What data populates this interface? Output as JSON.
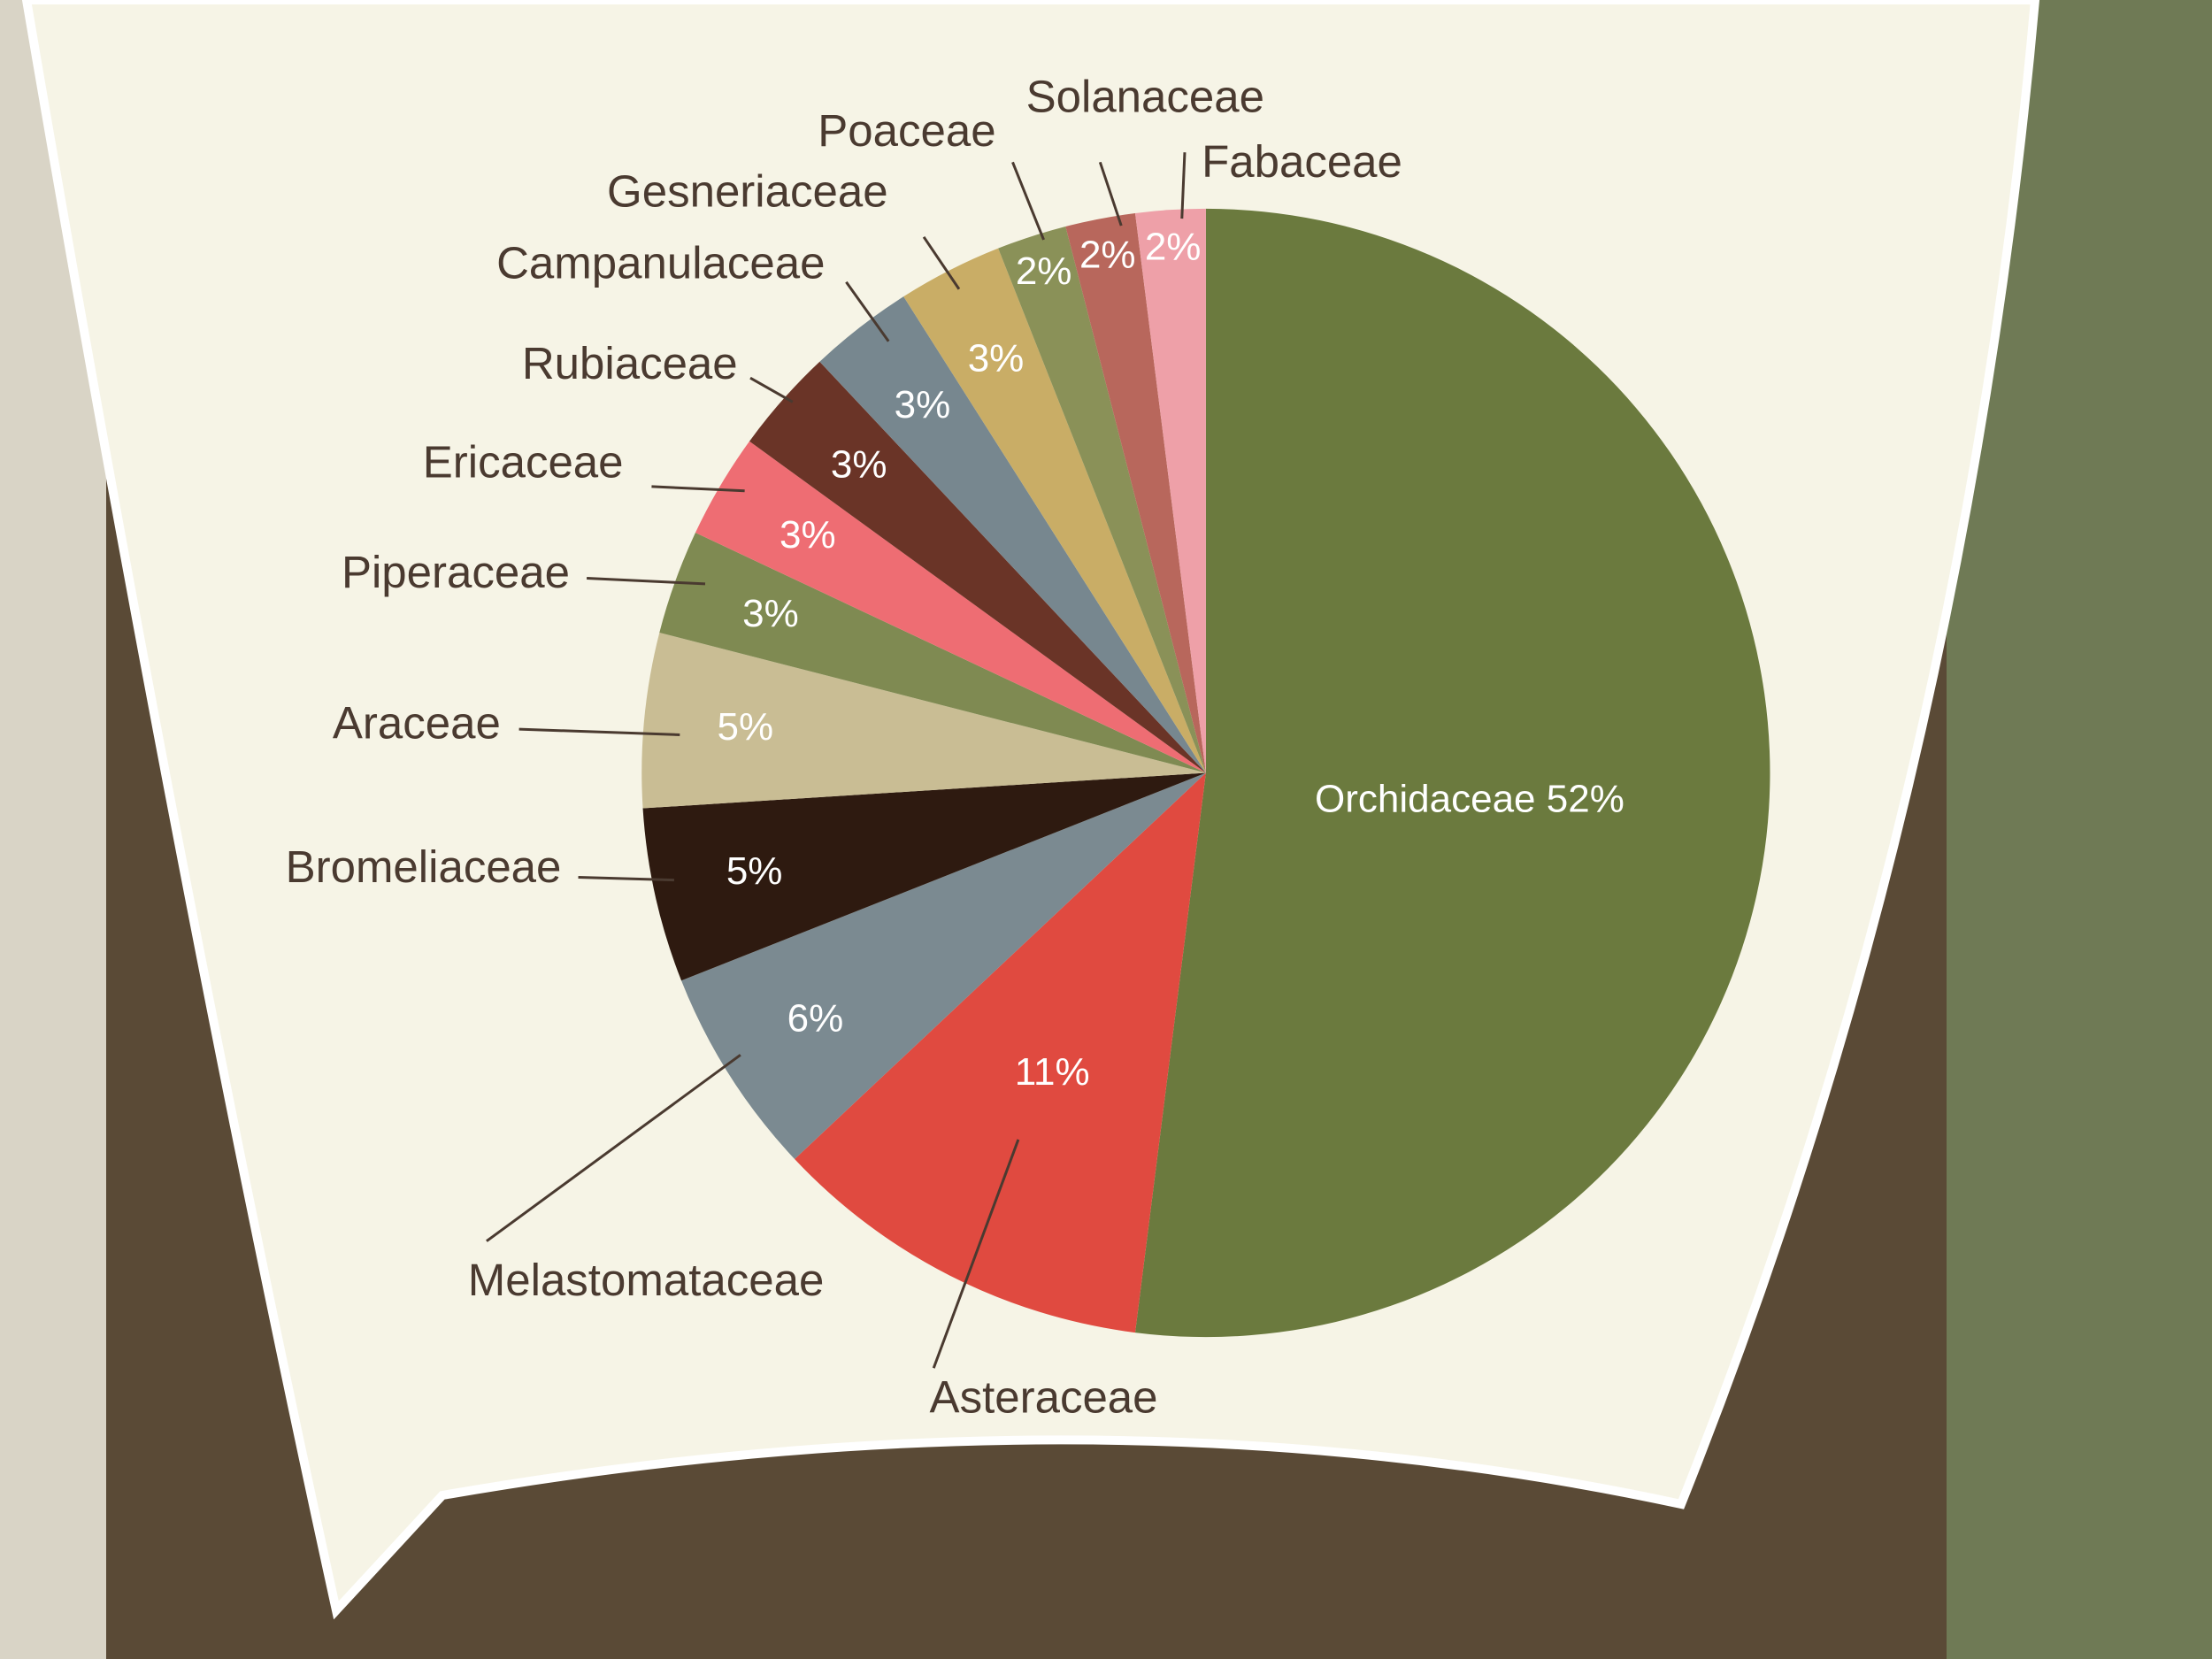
{
  "chart_data": {
    "type": "pie",
    "categories": [
      "Orchidaceae",
      "Asteraceae",
      "Melastomataceae",
      "Bromeliaceae",
      "Araceae",
      "Piperaceae",
      "Ericaceae",
      "Rubiaceae",
      "Campanulaceae",
      "Gesneriaceae",
      "Poaceae",
      "Solanaceae",
      "Fabaceae"
    ],
    "values": [
      52,
      11,
      6,
      5,
      5,
      3,
      3,
      3,
      3,
      3,
      2,
      2,
      2
    ],
    "value_labels": [
      "52%",
      "11%",
      "6%",
      "5%",
      "5%",
      "3%",
      "3%",
      "3%",
      "3%",
      "3%",
      "2%",
      "2%",
      "2%"
    ],
    "colors": [
      "#6b7a3e",
      "#e04a40",
      "#7b8a91",
      "#2e1a10",
      "#c9bd94",
      "#7f8a52",
      "#ee6d73",
      "#6a3427",
      "#77878f",
      "#c9ad66",
      "#8a9158",
      "#b8675c",
      "#eea0a8"
    ]
  }
}
